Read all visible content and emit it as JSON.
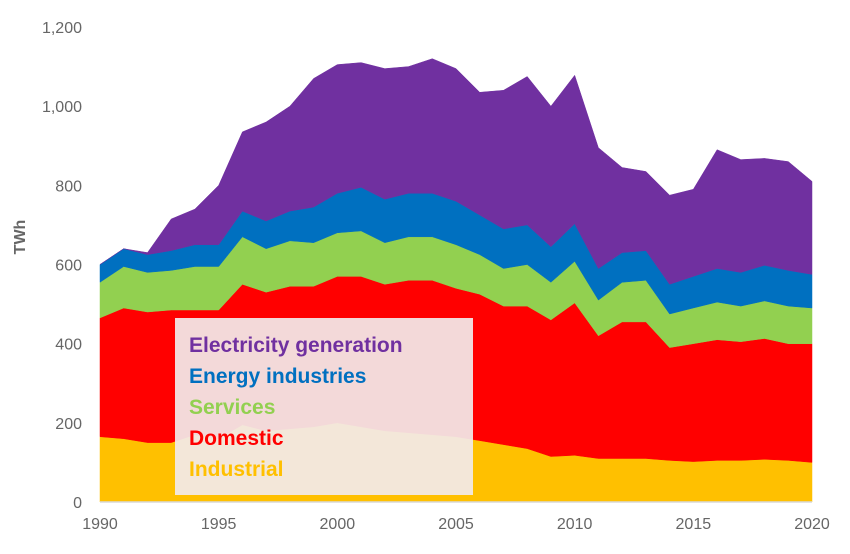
{
  "chart_data": {
    "type": "area",
    "stacked": true,
    "title": "",
    "xlabel": "",
    "ylabel": "TWh",
    "xlim": [
      1990,
      2020
    ],
    "ylim": [
      0,
      1200
    ],
    "x_ticks": [
      1990,
      1995,
      2000,
      2005,
      2010,
      2015,
      2020
    ],
    "y_ticks": [
      0,
      200,
      400,
      600,
      800,
      1000,
      1200
    ],
    "y_tick_labels": [
      "0",
      "200",
      "400",
      "600",
      "800",
      "1,000",
      "1,200"
    ],
    "grid": false,
    "legend_position": "lower-left-inside",
    "x": [
      1990,
      1991,
      1992,
      1993,
      1994,
      1995,
      1996,
      1997,
      1998,
      1999,
      2000,
      2001,
      2002,
      2003,
      2004,
      2005,
      2006,
      2007,
      2008,
      2009,
      2010,
      2011,
      2012,
      2013,
      2014,
      2015,
      2016,
      2017,
      2018,
      2019,
      2020
    ],
    "series": [
      {
        "name": "Industrial",
        "color": "#ffc000",
        "values": [
          165,
          160,
          150,
          150,
          170,
          160,
          195,
          180,
          185,
          190,
          200,
          190,
          180,
          175,
          170,
          165,
          155,
          145,
          135,
          115,
          118,
          110,
          110,
          110,
          105,
          102,
          105,
          105,
          108,
          105,
          100
        ]
      },
      {
        "name": "Domestic",
        "color": "#ff0000",
        "values": [
          300,
          330,
          330,
          335,
          315,
          325,
          355,
          350,
          360,
          355,
          370,
          380,
          370,
          385,
          390,
          375,
          370,
          350,
          360,
          345,
          385,
          310,
          345,
          345,
          285,
          298,
          305,
          300,
          305,
          295,
          300
        ]
      },
      {
        "name": "Services",
        "color": "#92d050",
        "values": [
          90,
          105,
          100,
          100,
          110,
          110,
          120,
          110,
          115,
          110,
          110,
          115,
          105,
          110,
          110,
          110,
          100,
          95,
          105,
          95,
          105,
          90,
          100,
          105,
          85,
          90,
          95,
          90,
          95,
          95,
          90
        ]
      },
      {
        "name": "Energy industries",
        "color": "#0070c0",
        "values": [
          45,
          45,
          45,
          50,
          55,
          55,
          65,
          70,
          75,
          90,
          100,
          110,
          110,
          110,
          110,
          110,
          100,
          100,
          100,
          90,
          95,
          80,
          75,
          75,
          75,
          80,
          85,
          85,
          90,
          90,
          85
        ]
      },
      {
        "name": "Electricity generation",
        "color": "#7030a0",
        "values": [
          0,
          0,
          5,
          80,
          90,
          150,
          200,
          250,
          265,
          325,
          325,
          315,
          330,
          320,
          340,
          335,
          310,
          350,
          375,
          355,
          375,
          305,
          215,
          200,
          225,
          220,
          300,
          285,
          270,
          275,
          235
        ]
      }
    ]
  }
}
